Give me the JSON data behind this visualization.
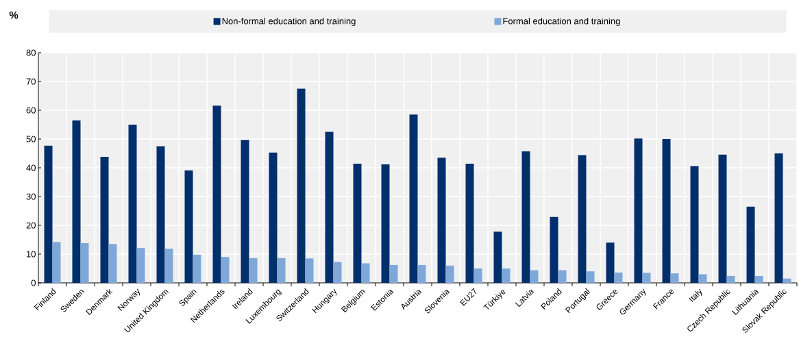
{
  "chart_data": {
    "type": "bar",
    "ylabel": "%",
    "categories": [
      "Finland",
      "Sweden",
      "Denmark",
      "Norway",
      "United Kingdom",
      "Spain",
      "Netherlands",
      "Ireland",
      "Luxembourg",
      "Switzerland",
      "Hungary",
      "Belgium",
      "Estonia",
      "Austria",
      "Slovenia",
      "EU27",
      "Türkiye",
      "Latvia",
      "Poland",
      "Portugal",
      "Greece",
      "Germany",
      "France",
      "Italy",
      "Czech Republic",
      "Lithuania",
      "Slovak Republic"
    ],
    "series": [
      {
        "name": "Non-formal education and training",
        "color": "#002f6c",
        "values": [
          47.7,
          56.5,
          43.8,
          55.0,
          47.5,
          39.1,
          61.6,
          49.7,
          45.3,
          67.5,
          52.5,
          41.4,
          41.2,
          58.5,
          43.5,
          41.4,
          17.8,
          45.7,
          22.9,
          44.4,
          14.0,
          50.2,
          50.0,
          40.6,
          44.6,
          26.5,
          45.0
        ]
      },
      {
        "name": "Formal education and training",
        "color": "#7fa8d9",
        "values": [
          14.2,
          13.8,
          13.5,
          12.1,
          11.9,
          9.8,
          9.0,
          8.6,
          8.6,
          8.5,
          7.3,
          6.8,
          6.2,
          6.2,
          6.0,
          5.0,
          5.0,
          4.4,
          4.4,
          4.0,
          3.6,
          3.5,
          3.3,
          3.0,
          2.4,
          2.4,
          1.5
        ]
      }
    ],
    "ylim": [
      0,
      80
    ],
    "yticks": [
      0,
      10,
      20,
      30,
      40,
      50,
      60,
      70,
      80
    ],
    "grid": true,
    "legend": "top"
  }
}
